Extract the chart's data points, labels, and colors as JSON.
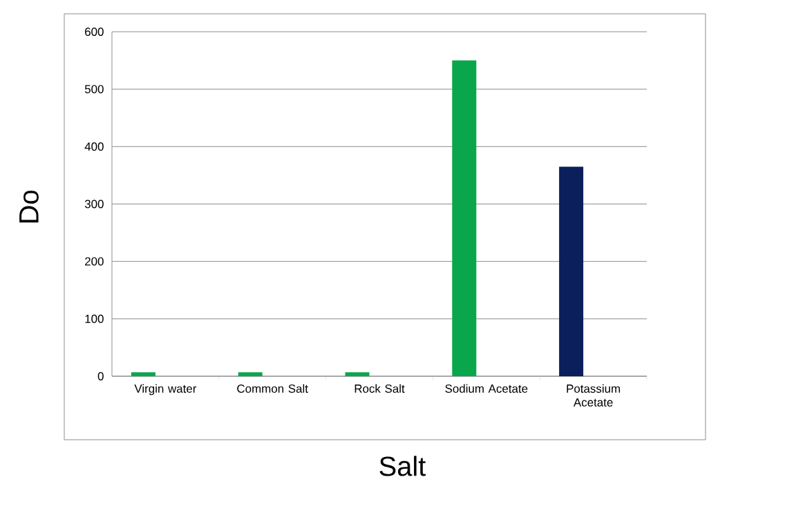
{
  "chart_data": {
    "type": "bar",
    "xlabel": "Salt",
    "ylabel": "Do",
    "categories": [
      "Virgin water",
      "Common Salt",
      "Rock Salt",
      "Sodium Acetate",
      "Potassium Acetate"
    ],
    "values": [
      7,
      7,
      7,
      550,
      365
    ],
    "colors": [
      "#0aa64c",
      "#0aa64c",
      "#0aa64c",
      "#0aa64c",
      "#0a1f5c"
    ],
    "ylim": [
      0,
      600
    ],
    "yticks": [
      0,
      100,
      200,
      300,
      400,
      500,
      600
    ],
    "grid": "y"
  }
}
